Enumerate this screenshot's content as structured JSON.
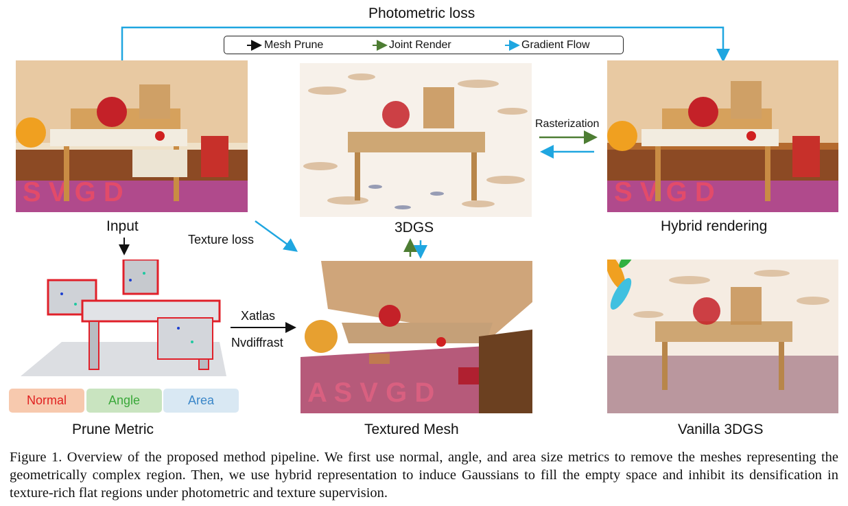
{
  "top_label": "Photometric loss",
  "legend": [
    {
      "label": "Mesh Prune",
      "color": "#111111"
    },
    {
      "label": "Joint Render",
      "color": "#4d7d33"
    },
    {
      "label": "Gradient Flow",
      "color": "#1fa6e0"
    }
  ],
  "labels": {
    "input": "Input",
    "gs": "3DGS",
    "hybrid": "Hybrid rendering",
    "texture_loss": "Texture loss",
    "rasterization": "Rasterization",
    "xatlas": "Xatlas",
    "nvdiffrast": "Nvdiffrast",
    "prune_metric": "Prune Metric",
    "textured_mesh": "Textured Mesh",
    "vanilla": "Vanilla 3DGS"
  },
  "metrics": [
    {
      "label": "Normal",
      "bg": "#f7c9ae",
      "fg": "#e02020"
    },
    {
      "label": "Angle",
      "bg": "#c9e4c0",
      "fg": "#3aa83a"
    },
    {
      "label": "Area",
      "bg": "#d9e8f3",
      "fg": "#3a86c8"
    }
  ],
  "caption": "Figure 1. Overview of the proposed method pipeline. We first use normal, angle, and area size metrics to remove the meshes representing the geometrically complex region. Then, we use hybrid representation to induce Gaussians to fill the empty space and inhibit its densification in texture-rich flat regions under photometric and texture supervision."
}
